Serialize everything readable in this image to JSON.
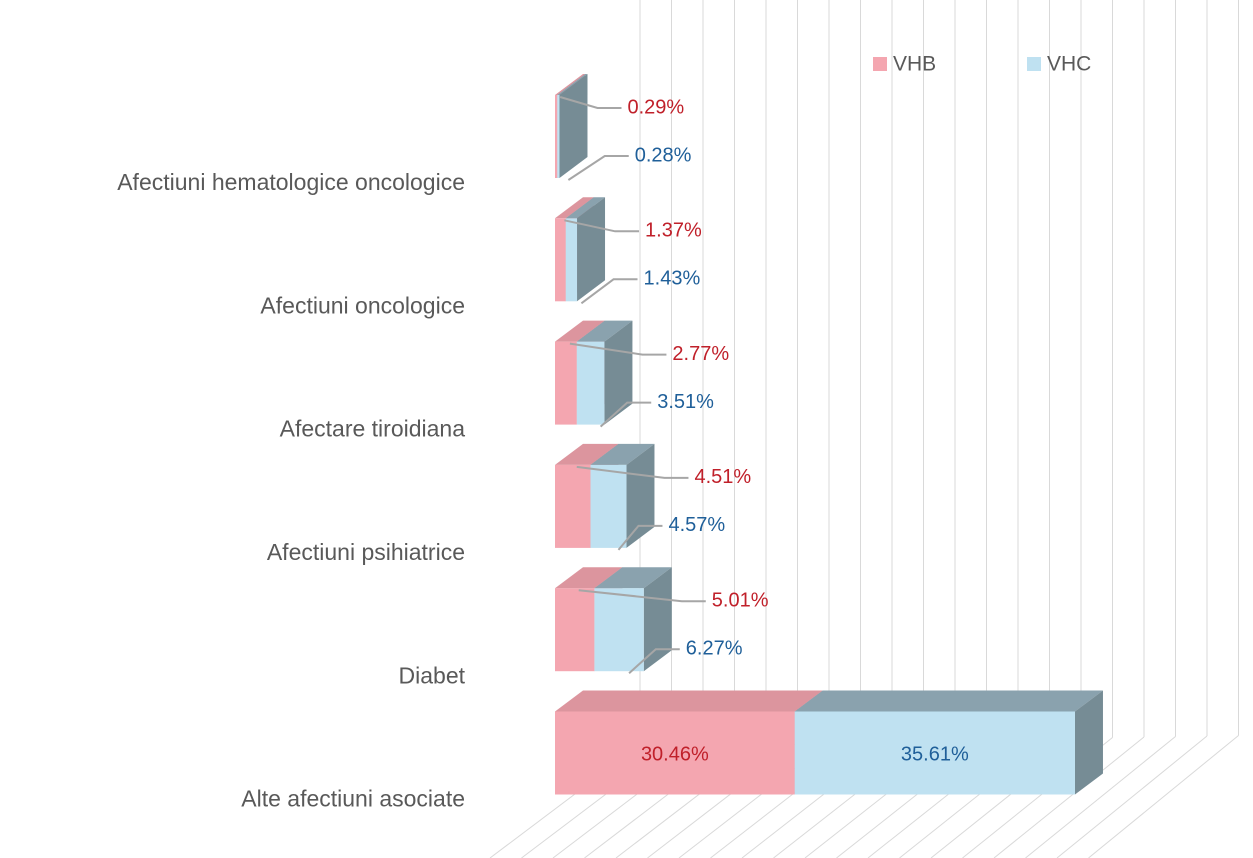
{
  "chart_data": {
    "type": "bar",
    "orientation": "horizontal",
    "stacked": true,
    "legend": "top-right",
    "categories": [
      "Afectiuni hematologice oncologice",
      "Afectiuni oncologice",
      "Afectare tiroidiana",
      "Afectiuni psihiatrice",
      "Diabet",
      "Alte afectiuni asociate"
    ],
    "series": [
      {
        "name": "VHB",
        "color": "#f4a6b0",
        "label_color": "#c0202a",
        "values": [
          0.29,
          1.37,
          2.77,
          4.51,
          5.01,
          30.46
        ],
        "value_labels": [
          "0.29%",
          "1.37%",
          "2.77%",
          "4.51%",
          "5.01%",
          "30.46%"
        ]
      },
      {
        "name": "VHC",
        "color": "#bfe1f1",
        "label_color": "#1f5f99",
        "values": [
          0.28,
          1.43,
          3.51,
          4.57,
          6.27,
          35.61
        ],
        "value_labels": [
          "0.28%",
          "1.43%",
          "3.51%",
          "4.57%",
          "6.27%",
          "35.61%"
        ]
      }
    ]
  }
}
